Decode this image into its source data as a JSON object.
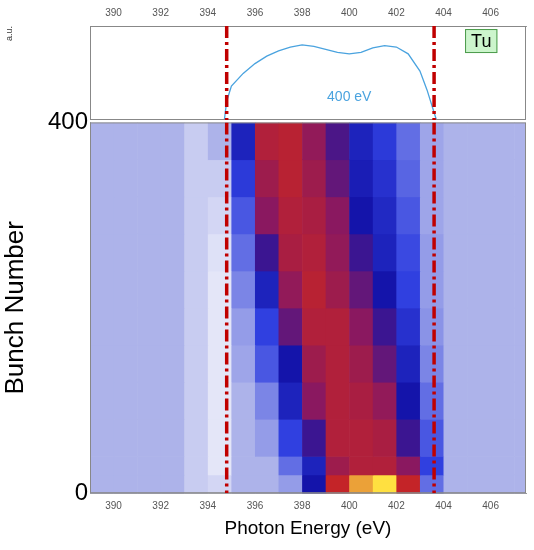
{
  "chart_data": [
    {
      "type": "line",
      "y_label": "a.u.",
      "x": [
        389,
        394.7,
        394.8,
        395,
        395.5,
        396,
        396.5,
        397,
        397.5,
        398,
        398.5,
        399,
        399.5,
        400,
        400.5,
        401,
        401.5,
        402,
        402.5,
        403,
        403.3,
        403.6,
        403.7,
        407.5
      ],
      "values": [
        0,
        0,
        0.25,
        0.45,
        0.62,
        0.75,
        0.85,
        0.92,
        0.97,
        1.0,
        0.98,
        0.94,
        0.9,
        0.88,
        0.9,
        0.96,
        0.99,
        0.97,
        0.88,
        0.65,
        0.4,
        0.1,
        0,
        0
      ],
      "color": "#4aa3df",
      "xlim": [
        389,
        407.5
      ],
      "xticks": [
        390,
        392,
        394,
        396,
        398,
        400,
        402,
        404,
        406
      ],
      "ylim": [
        0,
        1.25
      ],
      "tick_labels": "x",
      "grid": false,
      "annotations": [
        {
          "text": "400 eV",
          "x": 400,
          "y": 0.3
        },
        {
          "text": "Tu",
          "x": 405.6,
          "y": 1.05
        }
      ],
      "vlines": [
        394.8,
        403.6
      ]
    },
    {
      "type": "heatmap",
      "x_label": "Photon Energy (eV)",
      "y_label": "Bunch Number",
      "x_edges": [
        389,
        390,
        391,
        392,
        393,
        394,
        395,
        396,
        397,
        398,
        399,
        400,
        401,
        402,
        403,
        404,
        405,
        406,
        407,
        408
      ],
      "y_edges": [
        0,
        20,
        40,
        80,
        120,
        160,
        200,
        240,
        280,
        320,
        360,
        400
      ],
      "cells": [
        [
          0.15,
          0.15,
          0.15,
          0.15,
          0.1,
          0.08,
          0.15,
          0.15,
          0.2,
          0.55,
          0.85,
          0.95,
          1.0,
          0.85,
          0.3,
          0.15,
          0.15,
          0.15,
          0.15
        ],
        [
          0.15,
          0.15,
          0.15,
          0.15,
          0.1,
          0.05,
          0.15,
          0.15,
          0.3,
          0.5,
          0.75,
          0.8,
          0.8,
          0.7,
          0.4,
          0.15,
          0.15,
          0.15,
          0.15
        ],
        [
          0.15,
          0.15,
          0.15,
          0.15,
          0.1,
          0.05,
          0.15,
          0.2,
          0.4,
          0.6,
          0.8,
          0.8,
          0.78,
          0.6,
          0.35,
          0.15,
          0.15,
          0.15,
          0.15
        ],
        [
          0.15,
          0.15,
          0.15,
          0.15,
          0.1,
          0.05,
          0.15,
          0.25,
          0.5,
          0.7,
          0.8,
          0.78,
          0.72,
          0.55,
          0.3,
          0.15,
          0.15,
          0.15,
          0.15
        ],
        [
          0.15,
          0.15,
          0.15,
          0.15,
          0.1,
          0.05,
          0.18,
          0.35,
          0.55,
          0.75,
          0.8,
          0.75,
          0.65,
          0.5,
          0.25,
          0.15,
          0.15,
          0.15,
          0.15
        ],
        [
          0.15,
          0.15,
          0.15,
          0.15,
          0.1,
          0.05,
          0.2,
          0.4,
          0.65,
          0.8,
          0.8,
          0.7,
          0.6,
          0.45,
          0.22,
          0.15,
          0.15,
          0.15,
          0.15
        ],
        [
          0.15,
          0.15,
          0.15,
          0.15,
          0.1,
          0.05,
          0.25,
          0.5,
          0.72,
          0.82,
          0.75,
          0.65,
          0.55,
          0.4,
          0.2,
          0.15,
          0.15,
          0.15,
          0.15
        ],
        [
          0.15,
          0.15,
          0.15,
          0.15,
          0.1,
          0.06,
          0.3,
          0.6,
          0.78,
          0.8,
          0.72,
          0.6,
          0.5,
          0.38,
          0.2,
          0.15,
          0.15,
          0.15,
          0.15
        ],
        [
          0.15,
          0.15,
          0.15,
          0.15,
          0.1,
          0.08,
          0.35,
          0.7,
          0.8,
          0.78,
          0.7,
          0.55,
          0.48,
          0.35,
          0.18,
          0.15,
          0.15,
          0.15,
          0.15
        ],
        [
          0.15,
          0.15,
          0.15,
          0.15,
          0.1,
          0.1,
          0.42,
          0.75,
          0.82,
          0.75,
          0.65,
          0.52,
          0.45,
          0.32,
          0.18,
          0.15,
          0.15,
          0.15,
          0.15
        ],
        [
          0.15,
          0.15,
          0.15,
          0.15,
          0.1,
          0.15,
          0.5,
          0.8,
          0.82,
          0.72,
          0.62,
          0.5,
          0.42,
          0.3,
          0.18,
          0.15,
          0.15,
          0.15,
          0.15
        ]
      ],
      "clim": [
        0,
        1
      ],
      "xlim": [
        389,
        407.5
      ],
      "xticks": [
        390,
        392,
        394,
        396,
        398,
        400,
        402,
        404,
        406
      ],
      "ylim": [
        0,
        400
      ],
      "yticks": [
        0,
        400
      ],
      "grid": false,
      "vlines": [
        394.8,
        403.6
      ]
    }
  ]
}
